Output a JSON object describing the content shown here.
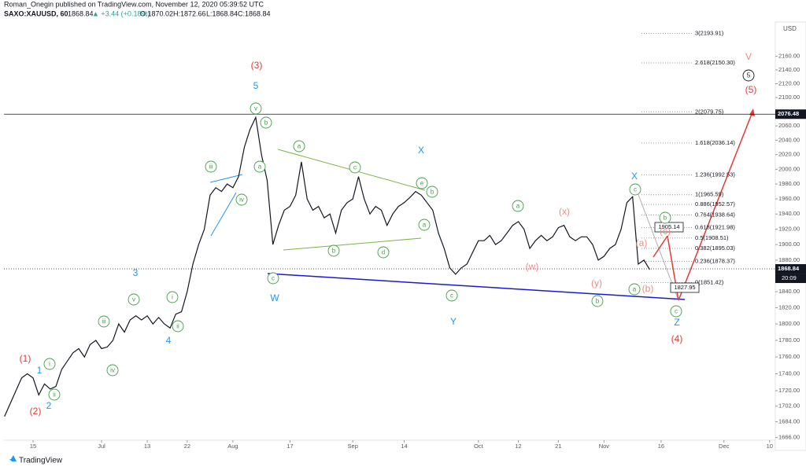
{
  "chart_data": {
    "type": "line",
    "header": {
      "author_line": "Roman_Onegin published on TradingView.com, November 12, 2020 05:39:52 UTC",
      "symbol": "SAXO:XAUUSD, 60",
      "last": "1868.84",
      "change": "▲ +3.44 (+0.18%)",
      "open": "O:1870.02",
      "high": "H:1872.66",
      "low": "L:1868.84",
      "close": "C:1868.84"
    },
    "currency": "USD",
    "brand": "TradingView",
    "color": "#131722",
    "log_scale": true,
    "x": [
      -5,
      -4,
      -3,
      -2,
      -1,
      0,
      1,
      2,
      3,
      4,
      5,
      6,
      7,
      8,
      9,
      10,
      11,
      12,
      13,
      14,
      15,
      16,
      17,
      18,
      19,
      20,
      21,
      22,
      23,
      24,
      25,
      26,
      27,
      28,
      29,
      30,
      31,
      32,
      33,
      34,
      35,
      36,
      37,
      38,
      39,
      40,
      41,
      42,
      43,
      44,
      45,
      46,
      47,
      48,
      49,
      50,
      51,
      52,
      53,
      54,
      55,
      56,
      57,
      58,
      59,
      60,
      61,
      62,
      63,
      64,
      65,
      66,
      67,
      68,
      69,
      70,
      71,
      72,
      73,
      74,
      75,
      76,
      77,
      78,
      79,
      80,
      81,
      82,
      83,
      84,
      85,
      86,
      87,
      88,
      89,
      90,
      91,
      92,
      93,
      94,
      95,
      96,
      97,
      98,
      99,
      100,
      101,
      102,
      103,
      104,
      105,
      106,
      107,
      108
    ],
    "values": [
      1690,
      1705,
      1720,
      1735,
      1740,
      1735,
      1715,
      1728,
      1722,
      1725,
      1745,
      1755,
      1765,
      1770,
      1760,
      1775,
      1780,
      1770,
      1772,
      1780,
      1800,
      1790,
      1805,
      1810,
      1805,
      1810,
      1800,
      1808,
      1800,
      1795,
      1812,
      1815,
      1840,
      1875,
      1900,
      1920,
      1965,
      1975,
      1970,
      1980,
      1975,
      1990,
      2030,
      2055,
      2072,
      2020,
      1985,
      1900,
      1925,
      1945,
      1950,
      1965,
      2010,
      1960,
      1945,
      1950,
      1935,
      1940,
      1915,
      1945,
      1955,
      1960,
      1990,
      1960,
      1940,
      1950,
      1945,
      1925,
      1940,
      1950,
      1955,
      1962,
      1970,
      1965,
      1955,
      1945,
      1915,
      1895,
      1870,
      1862,
      1870,
      1875,
      1890,
      1905,
      1905,
      1912,
      1900,
      1905,
      1915,
      1925,
      1930,
      1920,
      1895,
      1905,
      1912,
      1905,
      1910,
      1922,
      1925,
      1910,
      1905,
      1910,
      1910,
      1900,
      1880,
      1885,
      1895,
      1900,
      1920,
      1955,
      1963,
      1875,
      1880,
      1868
    ],
    "xlim": [
      -5.1,
      130
    ],
    "xticks": [
      {
        "value": 0,
        "label": "15"
      },
      {
        "value": 12,
        "label": "Jul"
      },
      {
        "value": 20,
        "label": "13"
      },
      {
        "value": 27,
        "label": "22"
      },
      {
        "value": 35,
        "label": "Aug"
      },
      {
        "value": 45,
        "label": "17"
      },
      {
        "value": 56,
        "label": "Sep"
      },
      {
        "value": 65,
        "label": "14"
      },
      {
        "value": 78,
        "label": "Oct"
      },
      {
        "value": 85,
        "label": "12"
      },
      {
        "value": 92,
        "label": "21"
      },
      {
        "value": 100,
        "label": "Nov"
      },
      {
        "value": 110,
        "label": "16"
      },
      {
        "value": 121,
        "label": "Dec"
      },
      {
        "value": 129,
        "label": "10"
      }
    ],
    "ylim": [
      1663,
      2211
    ],
    "yticks": [
      {
        "value": 1666,
        "label": "1666.00"
      },
      {
        "value": 1684,
        "label": "1684.00"
      },
      {
        "value": 1702,
        "label": "1702.00"
      },
      {
        "value": 1720,
        "label": "1720.00"
      },
      {
        "value": 1740,
        "label": "1740.00"
      },
      {
        "value": 1760,
        "label": "1760.00"
      },
      {
        "value": 1780,
        "label": "1780.00"
      },
      {
        "value": 1800,
        "label": "1800.00"
      },
      {
        "value": 1820,
        "label": "1820.00"
      },
      {
        "value": 1840,
        "label": "1840.00"
      },
      {
        "value": 1880,
        "label": "1880.00"
      },
      {
        "value": 1900,
        "label": "1900.00"
      },
      {
        "value": 1920,
        "label": "1920.00"
      },
      {
        "value": 1940,
        "label": "1940.00"
      },
      {
        "value": 1960,
        "label": "1960.00"
      },
      {
        "value": 1980,
        "label": "1980.00"
      },
      {
        "value": 2000,
        "label": "2000.00"
      },
      {
        "value": 2020,
        "label": "2020.00"
      },
      {
        "value": 2040,
        "label": "2040.00"
      },
      {
        "value": 2060,
        "label": "2060.00"
      },
      {
        "value": 2100,
        "label": "2100.00"
      },
      {
        "value": 2120,
        "label": "2120.00"
      },
      {
        "value": 2140,
        "label": "2140.00"
      },
      {
        "value": 2160,
        "label": "2160.00"
      }
    ],
    "fib_levels": [
      {
        "value": 2193.91,
        "label": "3(2193.91)"
      },
      {
        "value": 2150.3,
        "label": "2.618(2150.30)"
      },
      {
        "value": 2079.75,
        "label": "2(2079.75)"
      },
      {
        "value": 2036.14,
        "label": "1.618(2036.14)"
      },
      {
        "value": 1992.53,
        "label": "1.236(1992.53)"
      },
      {
        "value": 1965.59,
        "label": "1(1965.59)"
      },
      {
        "value": 1952.57,
        "label": "0.886(1952.57)"
      },
      {
        "value": 1938.64,
        "label": "0.764(1938.64)"
      },
      {
        "value": 1921.98,
        "label": "0.618(1921.98)"
      },
      {
        "value": 1908.51,
        "label": "0.5(1908.51)"
      },
      {
        "value": 1895.03,
        "label": "0.382(1895.03)"
      },
      {
        "value": 1878.37,
        "label": "0.236(1878.37)"
      },
      {
        "value": 1851.42,
        "label": "0(1851.42)"
      }
    ],
    "high_line": 2076.48,
    "last_price": 1868.84,
    "countdown": "20:09",
    "callouts": [
      1905.14,
      1827.95
    ],
    "annotations": [
      {
        "text": "(3)",
        "color": "#e53935",
        "circled": false
      },
      {
        "text": "5",
        "color": "#2196f3",
        "circled": false
      },
      {
        "text": "v",
        "color": "#43a047",
        "circled": true
      },
      {
        "text": "b",
        "color": "#43a047",
        "circled": true
      },
      {
        "text": "a",
        "color": "#43a047",
        "circled": true
      },
      {
        "text": "iii",
        "color": "#43a047",
        "circled": true
      },
      {
        "text": "iv",
        "color": "#43a047",
        "circled": true
      },
      {
        "text": "(1)",
        "color": "#e53935",
        "circled": false
      },
      {
        "text": "1",
        "color": "#2196f3",
        "circled": false
      },
      {
        "text": "i",
        "color": "#43a047",
        "circled": true
      },
      {
        "text": "ii",
        "color": "#43a047",
        "circled": true
      },
      {
        "text": "2",
        "color": "#2196f3",
        "circled": false
      },
      {
        "text": "(2)",
        "color": "#e53935",
        "circled": false
      },
      {
        "text": "3",
        "color": "#2196f3",
        "circled": false
      },
      {
        "text": "v",
        "color": "#43a047",
        "circled": true
      },
      {
        "text": "iii",
        "color": "#43a047",
        "circled": true
      },
      {
        "text": "iv",
        "color": "#43a047",
        "circled": true
      },
      {
        "text": "i",
        "color": "#43a047",
        "circled": true
      },
      {
        "text": "ii",
        "color": "#43a047",
        "circled": true
      },
      {
        "text": "4",
        "color": "#2196f3",
        "circled": false
      },
      {
        "text": "c",
        "color": "#43a047",
        "circled": true
      },
      {
        "text": "W",
        "color": "#2196f3",
        "circled": false
      },
      {
        "text": "a",
        "color": "#43a047",
        "circled": true
      },
      {
        "text": "X",
        "color": "#2196f3",
        "circled": false
      },
      {
        "text": "c",
        "color": "#43a047",
        "circled": true
      },
      {
        "text": "e",
        "color": "#43a047",
        "circled": true
      },
      {
        "text": "b",
        "color": "#43a047",
        "circled": true
      },
      {
        "text": "a",
        "color": "#43a047",
        "circled": true
      },
      {
        "text": "b",
        "color": "#43a047",
        "circled": true
      },
      {
        "text": "d",
        "color": "#43a047",
        "circled": true
      },
      {
        "text": "c",
        "color": "#43a047",
        "circled": true
      },
      {
        "text": "Y",
        "color": "#2196f3",
        "circled": false
      },
      {
        "text": "a",
        "color": "#43a047",
        "circled": true
      },
      {
        "text": "(x)",
        "color": "#f28b82",
        "circled": false
      },
      {
        "text": "(w)",
        "color": "#f28b82",
        "circled": false
      },
      {
        "text": "(y)",
        "color": "#f28b82",
        "circled": false
      },
      {
        "text": "b",
        "color": "#43a047",
        "circled": true
      },
      {
        "text": "X",
        "color": "#2196f3",
        "circled": false
      },
      {
        "text": "c",
        "color": "#43a047",
        "circled": true
      },
      {
        "text": "b",
        "color": "#43a047",
        "circled": true
      },
      {
        "text": "(c)",
        "color": "#f28b82",
        "circled": false
      },
      {
        "text": "(a)",
        "color": "#f28b82",
        "circled": false
      },
      {
        "text": "(b)",
        "color": "#f28b82",
        "circled": false
      },
      {
        "text": "a",
        "color": "#43a047",
        "circled": true
      },
      {
        "text": "c",
        "color": "#43a047",
        "circled": true
      },
      {
        "text": "Z",
        "color": "#2196f3",
        "circled": false
      },
      {
        "text": "(4)",
        "color": "#e53935",
        "circled": false
      },
      {
        "text": "V",
        "color": "#f28b82",
        "circled": false
      },
      {
        "text": "5",
        "color": "#131722",
        "circled": true
      },
      {
        "text": "(5)",
        "color": "#e53935",
        "circled": false
      }
    ]
  }
}
